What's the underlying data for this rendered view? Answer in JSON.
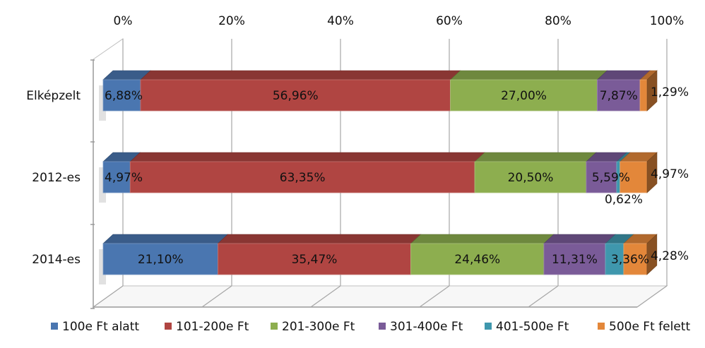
{
  "chart_data": {
    "type": "bar",
    "orientation": "horizontal",
    "stacked": "percent",
    "three_d": true,
    "categories": [
      "Elképzelt",
      "2012-es",
      "2014-es"
    ],
    "series": [
      {
        "name": "100e Ft alatt",
        "color": "#4a76b0",
        "values": [
          6.88,
          4.97,
          21.1
        ],
        "labels": [
          "6,88%",
          "4,97%",
          "21,10%"
        ]
      },
      {
        "name": "101-200e Ft",
        "color": "#b04542",
        "values": [
          56.96,
          63.35,
          35.47
        ],
        "labels": [
          "56,96%",
          "63,35%",
          "35,47%"
        ]
      },
      {
        "name": "201-300e Ft",
        "color": "#8dae4f",
        "values": [
          27.0,
          20.5,
          24.46
        ],
        "labels": [
          "27,00%",
          "20,50%",
          "24,46%"
        ]
      },
      {
        "name": "301-400e Ft",
        "color": "#7a5b98",
        "values": [
          7.87,
          5.59,
          11.31
        ],
        "labels": [
          "7,87%",
          "5,59%",
          "11,31%"
        ]
      },
      {
        "name": "401-500e Ft",
        "color": "#3f97ad",
        "values": [
          0,
          0.62,
          3.36
        ],
        "labels": [
          "",
          "0,62%",
          "3,36%"
        ]
      },
      {
        "name": "500e Ft felett",
        "color": "#e3873a",
        "values": [
          1.29,
          4.97,
          4.28
        ],
        "labels": [
          "1,29%",
          "4,97%",
          "4,28%"
        ]
      }
    ],
    "x_ticks": [
      "0%",
      "20%",
      "40%",
      "60%",
      "80%",
      "100%"
    ],
    "xlim": [
      0,
      100
    ],
    "grid": true,
    "legend_position": "bottom"
  }
}
